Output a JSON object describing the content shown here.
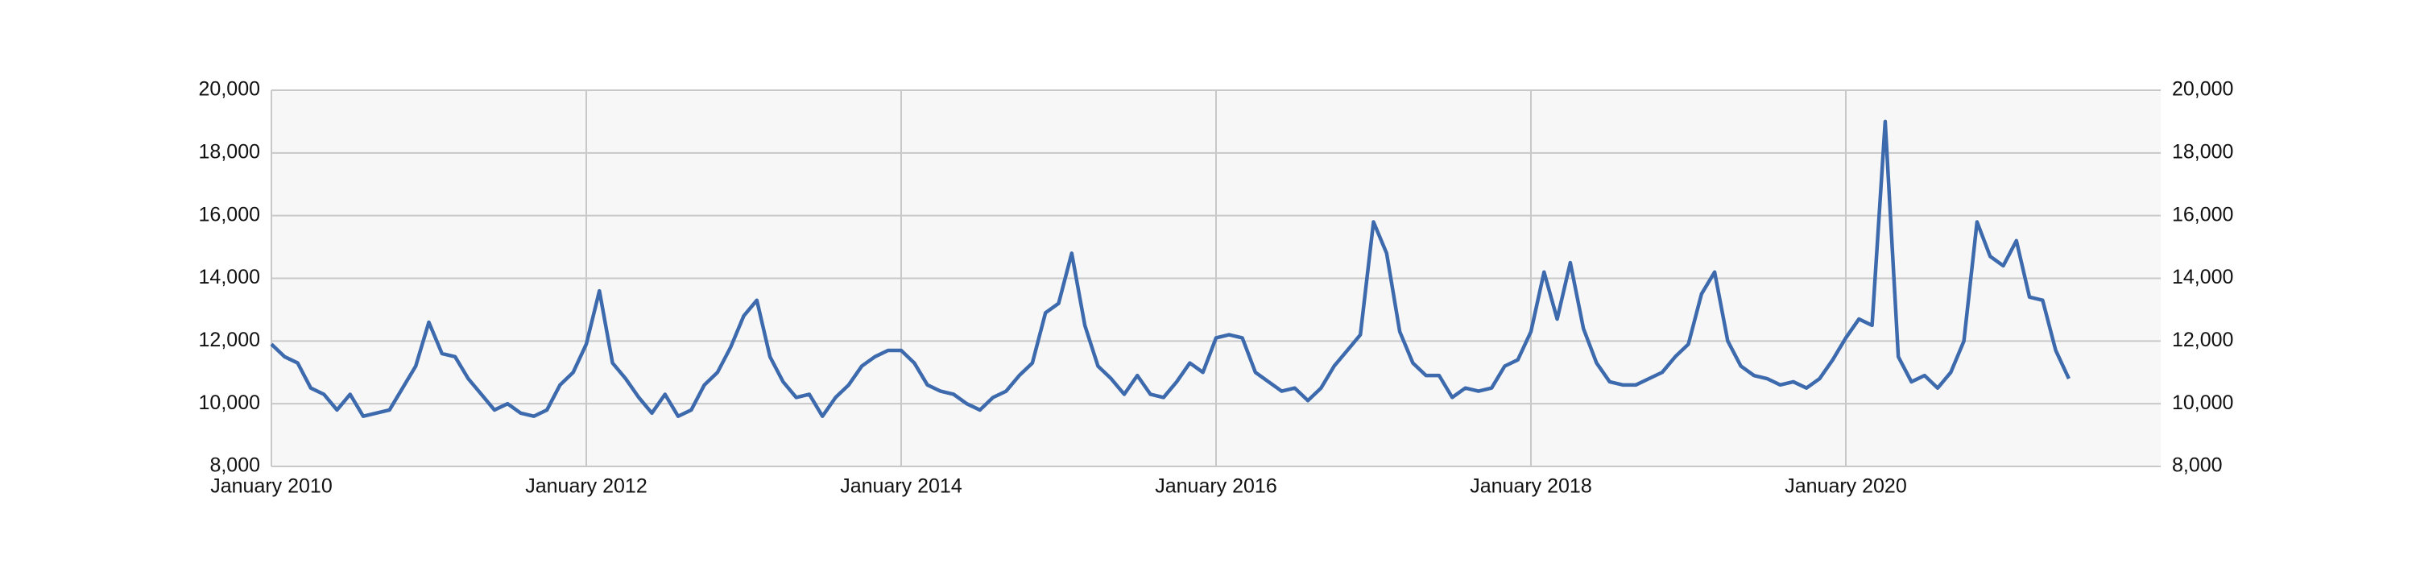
{
  "chart_data": {
    "type": "line",
    "x": [
      "2010-01",
      "2010-02",
      "2010-03",
      "2010-04",
      "2010-05",
      "2010-06",
      "2010-07",
      "2010-08",
      "2010-09",
      "2010-10",
      "2010-11",
      "2010-12",
      "2011-01",
      "2011-02",
      "2011-03",
      "2011-04",
      "2011-05",
      "2011-06",
      "2011-07",
      "2011-08",
      "2011-09",
      "2011-10",
      "2011-11",
      "2011-12",
      "2012-01",
      "2012-02",
      "2012-03",
      "2012-04",
      "2012-05",
      "2012-06",
      "2012-07",
      "2012-08",
      "2012-09",
      "2012-10",
      "2012-11",
      "2012-12",
      "2013-01",
      "2013-02",
      "2013-03",
      "2013-04",
      "2013-05",
      "2013-06",
      "2013-07",
      "2013-08",
      "2013-09",
      "2013-10",
      "2013-11",
      "2013-12",
      "2014-01",
      "2014-02",
      "2014-03",
      "2014-04",
      "2014-05",
      "2014-06",
      "2014-07",
      "2014-08",
      "2014-09",
      "2014-10",
      "2014-11",
      "2014-12",
      "2015-01",
      "2015-02",
      "2015-03",
      "2015-04",
      "2015-05",
      "2015-06",
      "2015-07",
      "2015-08",
      "2015-09",
      "2015-10",
      "2015-11",
      "2015-12",
      "2016-01",
      "2016-02",
      "2016-03",
      "2016-04",
      "2016-05",
      "2016-06",
      "2016-07",
      "2016-08",
      "2016-09",
      "2016-10",
      "2016-11",
      "2016-12",
      "2017-01",
      "2017-02",
      "2017-03",
      "2017-04",
      "2017-05",
      "2017-06",
      "2017-07",
      "2017-08",
      "2017-09",
      "2017-10",
      "2017-11",
      "2017-12",
      "2018-01",
      "2018-02",
      "2018-03",
      "2018-04",
      "2018-05",
      "2018-06",
      "2018-07",
      "2018-08",
      "2018-09",
      "2018-10",
      "2018-11",
      "2018-12",
      "2019-01",
      "2019-02",
      "2019-03",
      "2019-04",
      "2019-05",
      "2019-06",
      "2019-07",
      "2019-08",
      "2019-09",
      "2019-10",
      "2019-11",
      "2019-12",
      "2020-01",
      "2020-02",
      "2020-03",
      "2020-04",
      "2020-05",
      "2020-06",
      "2020-07",
      "2020-08",
      "2020-09",
      "2020-10",
      "2020-11",
      "2020-12",
      "2021-01",
      "2021-02",
      "2021-03",
      "2021-04",
      "2021-05",
      "2021-06"
    ],
    "series": [
      {
        "color": "#3d6aad",
        "axis": "y",
        "values": [
          11900,
          11500,
          11300,
          10500,
          10300,
          9800,
          10300,
          9600,
          9700,
          9800,
          10500,
          11200,
          12600,
          11600,
          11500,
          10800,
          10300,
          9800,
          10000,
          9700,
          9600,
          9800,
          10600,
          11000,
          11900,
          13600,
          11300,
          10800,
          10200,
          9700,
          10300,
          9600,
          9800,
          10600,
          11000,
          11800,
          12800,
          13300,
          11500,
          10700,
          10200,
          10300,
          9600,
          10200,
          10600,
          11200,
          11500,
          11700,
          11700,
          11300,
          10600,
          10400,
          10300,
          10000,
          9800,
          10200,
          10400,
          10900,
          11300,
          12900,
          13200,
          14800,
          12500,
          11200,
          10800,
          10300,
          10900,
          10300,
          10200,
          10700,
          11300,
          11000,
          12100,
          12200,
          12100,
          11000,
          10700,
          10400,
          10500,
          10100,
          10500,
          11200,
          11700,
          12200,
          15800,
          14800,
          12300,
          11300,
          10900,
          10900,
          10200,
          10500,
          10400,
          10500,
          11200,
          11400,
          12300,
          14200,
          12700,
          14500,
          12400,
          11300,
          10700,
          10600,
          10600,
          10800,
          11000,
          11500,
          11900,
          13500,
          14200,
          12000,
          11200,
          10900,
          10800,
          10600,
          10700,
          10500,
          10800,
          11400,
          12100,
          12700,
          12500,
          19000,
          11500,
          10700,
          10900,
          10500,
          11000,
          12000,
          15800,
          14700,
          14400,
          15200,
          13400,
          13300,
          11700,
          10800
        ]
      }
    ],
    "xlim": [
      "2010-01",
      "2022-01"
    ],
    "xticks": [
      {
        "value": "2010-01",
        "label": "January 2010"
      },
      {
        "value": "2012-01",
        "label": "January 2012"
      },
      {
        "value": "2014-01",
        "label": "January 2014"
      },
      {
        "value": "2016-01",
        "label": "January 2016"
      },
      {
        "value": "2018-01",
        "label": "January 2018"
      },
      {
        "value": "2020-01",
        "label": "January 2020"
      }
    ],
    "ylim": [
      8000,
      20000
    ],
    "yticks": [
      {
        "value": 8000,
        "label": "8,000"
      },
      {
        "value": 10000,
        "label": "10,000"
      },
      {
        "value": 12000,
        "label": "12,000"
      },
      {
        "value": 14000,
        "label": "14,000"
      },
      {
        "value": 16000,
        "label": "16,000"
      },
      {
        "value": 18000,
        "label": "18,000"
      },
      {
        "value": 20000,
        "label": "20,000"
      }
    ],
    "y2lim": [
      8000,
      20000
    ],
    "y2ticks": [
      {
        "value": 8000,
        "label": "8,000"
      },
      {
        "value": 10000,
        "label": "10,000"
      },
      {
        "value": 12000,
        "label": "12,000"
      },
      {
        "value": 14000,
        "label": "14,000"
      },
      {
        "value": 16000,
        "label": "16,000"
      },
      {
        "value": 18000,
        "label": "18,000"
      },
      {
        "value": 20000,
        "label": "20,000"
      }
    ],
    "grid": true
  }
}
